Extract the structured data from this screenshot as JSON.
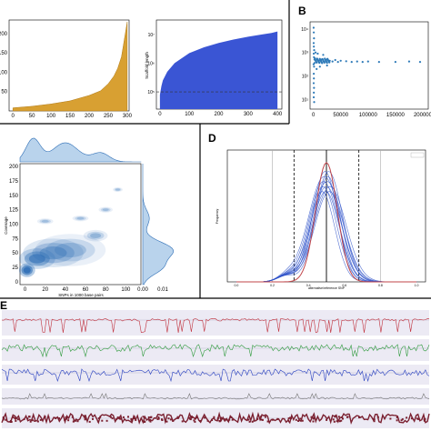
{
  "panels": {
    "a": {
      "letter": ""
    },
    "b": {
      "letter": "B"
    },
    "c": {
      "letter": ""
    },
    "d": {
      "letter": "D"
    },
    "e": {
      "letter": "E"
    }
  },
  "chart_data": [
    {
      "id": "A1",
      "type": "area",
      "color": "#d8a032",
      "x_ticks": [
        "0",
        "50",
        "100",
        "150",
        "200",
        "250",
        "300"
      ],
      "y_ticks": [
        "200",
        "150",
        "100",
        "50"
      ],
      "xlim": [
        -10,
        305
      ],
      "ylim": [
        0,
        235
      ],
      "x": [
        0,
        50,
        100,
        150,
        200,
        230,
        250,
        265,
        275,
        285,
        290,
        295,
        300
      ],
      "y": [
        8,
        12,
        18,
        26,
        40,
        52,
        70,
        90,
        110,
        140,
        170,
        200,
        230
      ]
    },
    {
      "id": "A2",
      "type": "area",
      "color": "#3a55d4",
      "ylabel": "Scaffold length",
      "x_ticks": [
        "0",
        "100",
        "200",
        "300",
        "400"
      ],
      "y_ticks": [
        "10⁷",
        "10⁶",
        "10⁵"
      ],
      "ylog": true,
      "xlim": [
        -12,
        415
      ],
      "ylim_log10": [
        4.4,
        7.5
      ],
      "dashed_hline_log10": 5.0,
      "x": [
        0,
        5,
        10,
        25,
        50,
        100,
        150,
        200,
        250,
        300,
        350,
        380,
        400
      ],
      "y_log10": [
        4.9,
        5.2,
        5.4,
        5.7,
        6.0,
        6.35,
        6.55,
        6.7,
        6.82,
        6.92,
        7.0,
        7.05,
        7.1
      ]
    },
    {
      "id": "B",
      "type": "scatter",
      "color": "#2e7ab8",
      "x_ticks": [
        "0",
        "50000",
        "100000",
        "150000",
        "200000"
      ],
      "y_ticks": [
        "10⁴",
        "10³",
        "10²",
        "10¹"
      ],
      "ylog": true,
      "xlim": [
        -6000,
        210000
      ],
      "ylim_log10": [
        0.6,
        4.3
      ],
      "points": [
        [
          500,
          4.05
        ],
        [
          800,
          3.85
        ],
        [
          1200,
          3.6
        ],
        [
          600,
          3.4
        ],
        [
          900,
          3.25
        ],
        [
          1500,
          3.1
        ],
        [
          700,
          2.95
        ],
        [
          1100,
          2.8
        ],
        [
          2000,
          2.7
        ],
        [
          400,
          2.5
        ],
        [
          1300,
          2.4
        ],
        [
          800,
          2.1
        ],
        [
          1000,
          1.9
        ],
        [
          600,
          1.7
        ],
        [
          1200,
          1.5
        ],
        [
          900,
          1.3
        ],
        [
          700,
          1.1
        ],
        [
          1500,
          0.9
        ],
        [
          3000,
          2.75
        ],
        [
          5000,
          2.6
        ],
        [
          7000,
          2.7
        ],
        [
          10000,
          2.65
        ],
        [
          15000,
          2.7
        ],
        [
          20000,
          2.6
        ],
        [
          25000,
          2.7
        ],
        [
          30000,
          2.65
        ],
        [
          35000,
          2.62
        ],
        [
          40000,
          2.68
        ],
        [
          45000,
          2.6
        ],
        [
          50000,
          2.65
        ],
        [
          60000,
          2.63
        ],
        [
          70000,
          2.6
        ],
        [
          80000,
          2.62
        ],
        [
          90000,
          2.6
        ],
        [
          100000,
          2.62
        ],
        [
          120000,
          2.6
        ],
        [
          150000,
          2.6
        ],
        [
          175000,
          2.62
        ],
        [
          195000,
          2.6
        ],
        [
          4000,
          3.0
        ],
        [
          8000,
          2.95
        ],
        [
          12000,
          2.4
        ],
        [
          18000,
          2.9
        ],
        [
          6000,
          2.3
        ],
        [
          25000,
          2.45
        ]
      ]
    },
    {
      "id": "C",
      "type": "heatmap",
      "color": "#2f6fb6",
      "xlabel": "SNPs in 1000 base pairs",
      "ylabel": "Coverage",
      "x_ticks": [
        "0",
        "20",
        "40",
        "60",
        "80",
        "100"
      ],
      "y_ticks": [
        "200",
        "175",
        "150",
        "125",
        "100",
        "75",
        "50",
        "25",
        "0"
      ],
      "margin_x_ticks": [
        "0.00",
        "0.01"
      ],
      "xlim": [
        -5,
        115
      ],
      "ylim": [
        -5,
        205
      ],
      "density_blobs": [
        {
          "x": 2,
          "y": 20,
          "rx": 8,
          "ry": 12,
          "level": 1.0
        },
        {
          "x": 12,
          "y": 40,
          "rx": 18,
          "ry": 18,
          "level": 0.7
        },
        {
          "x": 28,
          "y": 50,
          "rx": 30,
          "ry": 25,
          "level": 0.45
        },
        {
          "x": 45,
          "y": 55,
          "rx": 35,
          "ry": 28,
          "level": 0.3
        },
        {
          "x": 70,
          "y": 80,
          "rx": 12,
          "ry": 10,
          "level": 0.35
        },
        {
          "x": 20,
          "y": 105,
          "rx": 8,
          "ry": 5,
          "level": 0.3
        },
        {
          "x": 55,
          "y": 110,
          "rx": 8,
          "ry": 5,
          "level": 0.3
        },
        {
          "x": 80,
          "y": 125,
          "rx": 7,
          "ry": 5,
          "level": 0.3
        },
        {
          "x": 92,
          "y": 160,
          "rx": 5,
          "ry": 4,
          "level": 0.3
        }
      ]
    },
    {
      "id": "D",
      "type": "line",
      "color": "#2b4fc8",
      "reference_color": "#c0454a",
      "xlabel": "alternative/reference SNP",
      "ylabel": "Frequency",
      "x_ticks": [
        "0.0",
        "0.2",
        "0.4",
        "0.6",
        "0.8",
        "1.0"
      ],
      "xlim": [
        -0.05,
        1.05
      ],
      "ylim": [
        0,
        1.05
      ],
      "peak_x": 0.5,
      "series_count": 12,
      "vlines_solid": [
        0.5
      ],
      "vlines_dashed": [
        0.32,
        0.68
      ],
      "vlines_light": [
        0.2,
        0.8
      ]
    },
    {
      "id": "E",
      "type": "line",
      "tracks": [
        {
          "color": "#c0303c"
        },
        {
          "color": "#2e9a3c"
        },
        {
          "color": "#2840c0"
        },
        {
          "color": "#777777"
        },
        {
          "color": "#7a2030"
        }
      ]
    }
  ]
}
